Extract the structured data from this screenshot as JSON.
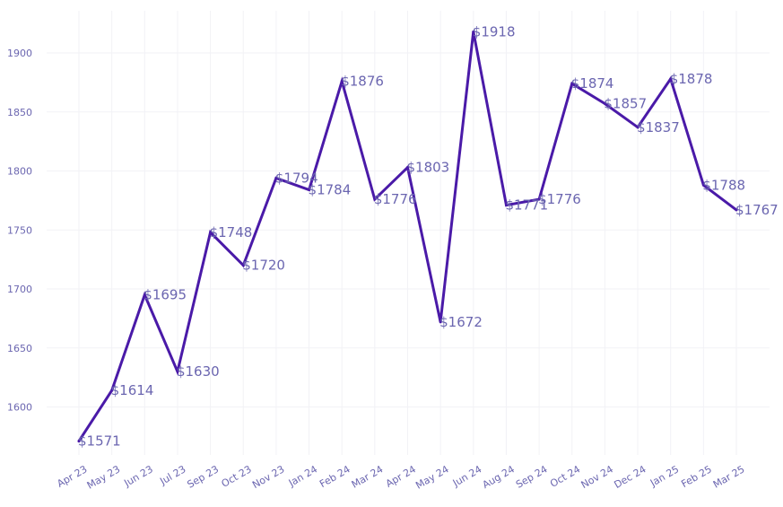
{
  "chart_data": {
    "type": "line",
    "title": "",
    "xlabel": "",
    "ylabel": "",
    "categories": [
      "Apr 23",
      "May 23",
      "Jun 23",
      "Jul 23",
      "Sep 23",
      "Oct 23",
      "Nov 23",
      "Jan 24",
      "Feb 24",
      "Mar 24",
      "Apr 24",
      "May 24",
      "Jun 24",
      "Aug 24",
      "Sep 24",
      "Oct 24",
      "Nov 24",
      "Dec 24",
      "Jan 25",
      "Feb 25",
      "Mar 25"
    ],
    "values": [
      1571,
      1614,
      1695,
      1630,
      1748,
      1720,
      1794,
      1784,
      1876,
      1776,
      1803,
      1672,
      1918,
      1771,
      1776,
      1874,
      1857,
      1837,
      1878,
      1788,
      1767
    ],
    "data_labels": [
      "$1571",
      "$1614",
      "$1695",
      "$1630",
      "$1748",
      "$1720",
      "$1794",
      "$1784",
      "$1876",
      "$1776",
      "$1803",
      "$1672",
      "$1918",
      "$1771",
      "$1776",
      "$1874",
      "$1857",
      "$1837",
      "$1878",
      "$1788",
      "$1767"
    ],
    "y_ticks": [
      1600,
      1650,
      1700,
      1750,
      1800,
      1850,
      1900
    ],
    "ylim": [
      1550,
      1935
    ],
    "grid": true,
    "legend": "none",
    "colors": {
      "line": "#4a1aa8",
      "text": "#6b66b0",
      "grid": "#f2f2f6"
    }
  }
}
